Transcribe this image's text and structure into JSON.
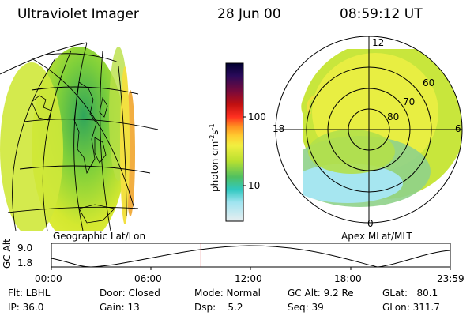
{
  "header": {
    "instrument": "Ultraviolet Imager",
    "date": "28 Jun 00",
    "time": "08:59:12 UT"
  },
  "left_panel": {
    "caption": "Geographic Lat/Lon"
  },
  "right_panel": {
    "caption": "Apex MLat/MLT",
    "mlt_labels": [
      "12",
      "18",
      "6",
      "0"
    ],
    "mlat_labels": [
      "60",
      "70",
      "80"
    ]
  },
  "colorbar": {
    "unit": "photon cm",
    "unit_sup1": "-2",
    "unit_mid": "s",
    "unit_sup2": "-1",
    "ticks": [
      "100",
      "10"
    ]
  },
  "altitude_plot": {
    "ylabel": "GC Alt",
    "yticks": [
      "9.0",
      "1.8"
    ],
    "xticks": [
      "00:00",
      "06:00",
      "12:00",
      "18:00",
      "23:59"
    ],
    "marker_time_hours": 9.0
  },
  "footer": {
    "filter": "Flt: LBHL",
    "ip": "IP: 36.0",
    "door": "Door: Closed",
    "gain": "Gain: 13",
    "mode": "Mode: Normal",
    "dsp": "Dsp:    5.2",
    "gc_alt": "GC Alt: 9.2 Re",
    "seq": "Seq: 39",
    "glat": "GLat:   80.1",
    "glon": "GLon: 311.7"
  }
}
